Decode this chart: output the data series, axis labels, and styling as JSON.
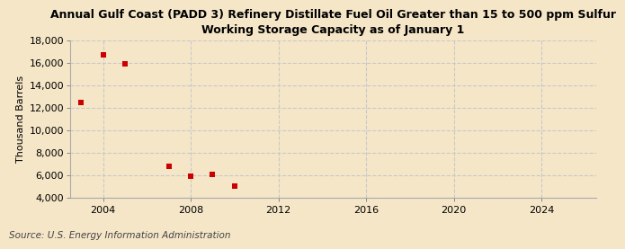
{
  "title": "Annual Gulf Coast (PADD 3) Refinery Distillate Fuel Oil Greater than 15 to 500 ppm Sulfur\nWorking Storage Capacity as of January 1",
  "ylabel": "Thousand Barrels",
  "source": "Source: U.S. Energy Information Administration",
  "x_data": [
    2003,
    2004,
    2005,
    2007,
    2008,
    2009,
    2010
  ],
  "y_data": [
    12500,
    16700,
    15900,
    6800,
    5900,
    6100,
    5000
  ],
  "marker_color": "#cc0000",
  "marker_size": 20,
  "ylim": [
    4000,
    18000
  ],
  "yticks": [
    4000,
    6000,
    8000,
    10000,
    12000,
    14000,
    16000,
    18000
  ],
  "xlim": [
    2002.5,
    2026.5
  ],
  "xticks": [
    2004,
    2008,
    2012,
    2016,
    2020,
    2024
  ],
  "background_color": "#f5e6c8",
  "grid_color": "#c8c8c8",
  "title_fontsize": 9,
  "label_fontsize": 8,
  "tick_fontsize": 8,
  "source_fontsize": 7.5
}
